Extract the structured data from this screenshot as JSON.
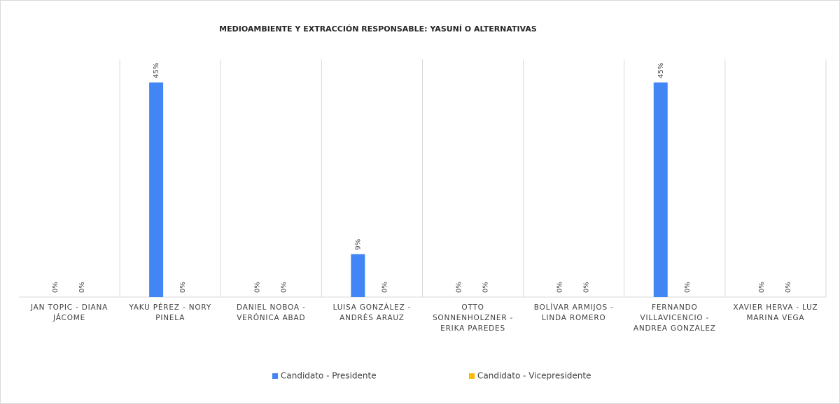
{
  "chart_data": {
    "type": "bar",
    "title": "MEDIOAMBIENTE Y EXTRACCIÓN RESPONSABLE: YASUNÍ O ALTERNATIVAS",
    "categories": [
      "JAN TOPIC - DIANA JÁCOME",
      "YAKU PÉREZ - NORY PINELA",
      "DANIEL NOBOA - VERÓNICA ABAD",
      "LUISA GONZÁLEZ - ANDRÉS ARAUZ",
      "OTTO SONNENHOLZNER - ERIKA PAREDES",
      "BOLÍVAR ARMIJOS - LINDA ROMERO",
      "FERNANDO VILLAVICENCIO - ANDREA GONZALEZ",
      "XAVIER HERVA - LUZ MARINA VEGA"
    ],
    "series": [
      {
        "name": "Candidato - Presidente",
        "color": "#4285f4",
        "values": [
          0,
          45,
          0,
          9,
          0,
          0,
          45,
          0
        ],
        "value_labels": [
          "0%",
          "45%",
          "0%",
          "9%",
          "0%",
          "0%",
          "45%",
          "0%"
        ]
      },
      {
        "name": "Candidato - Vicepresidente",
        "color": "#fbbc04",
        "values": [
          0,
          0,
          0,
          0,
          0,
          0,
          0,
          0
        ],
        "value_labels": [
          "0%",
          "0%",
          "0%",
          "0%",
          "0%",
          "0%",
          "0%",
          "0%"
        ]
      }
    ],
    "legend": "bottom"
  }
}
